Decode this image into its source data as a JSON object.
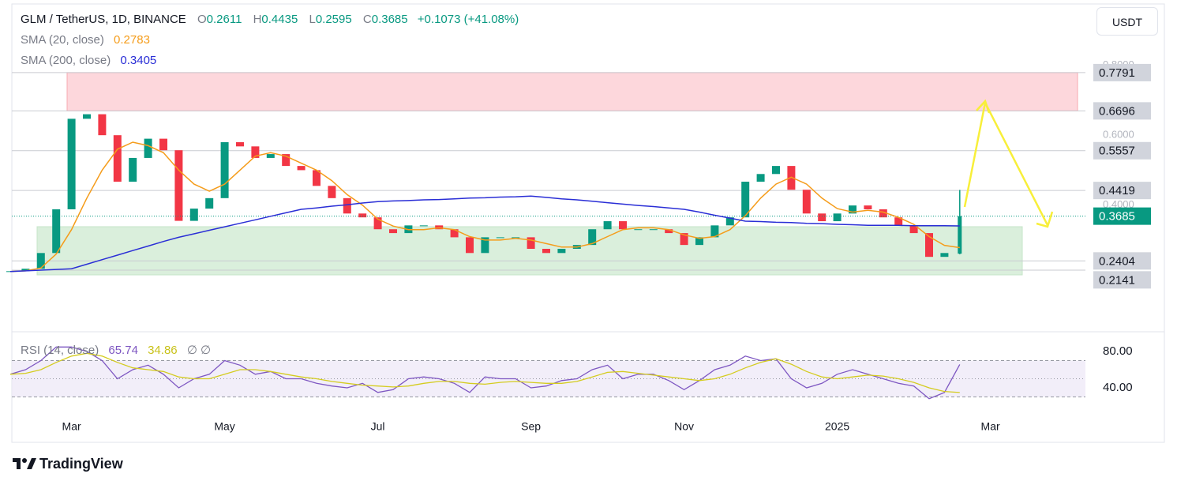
{
  "chart_data": {
    "type": "candlestick",
    "title": "GLM / TetherUS, 1D, BINANCE",
    "ohlc_labels": [
      "O",
      "H",
      "L",
      "C"
    ],
    "ohlc": [
      0.2611,
      0.4435,
      0.2595,
      0.3685
    ],
    "change": "+0.1073 (+41.08%)",
    "currency": "USDT",
    "brand": "TradingView",
    "up_color": "#089981",
    "down_color": "#f23645",
    "categories": [
      null,
      null,
      null,
      null,
      "Mar",
      null,
      null,
      null,
      null,
      null,
      null,
      null,
      null,
      null,
      "May",
      null,
      null,
      null,
      null,
      null,
      null,
      null,
      null,
      null,
      "Jul",
      null,
      null,
      null,
      null,
      null,
      null,
      null,
      null,
      null,
      "Sep",
      null,
      null,
      null,
      null,
      null,
      null,
      null,
      null,
      null,
      "Nov",
      null,
      null,
      null,
      null,
      null,
      null,
      null,
      null,
      null,
      "2025",
      null,
      null,
      null,
      null,
      null,
      null,
      null,
      null,
      null,
      "Mar",
      null,
      null,
      null,
      null,
      null
    ],
    "close": [
      0.211,
      0.218,
      0.263,
      0.388,
      0.647,
      0.66,
      0.6,
      0.467,
      0.535,
      0.59,
      0.557,
      0.355,
      0.39,
      0.42,
      0.58,
      0.568,
      0.535,
      0.546,
      0.512,
      0.5,
      0.455,
      0.42,
      0.376,
      0.365,
      0.331,
      0.32,
      0.342,
      0.342,
      0.331,
      0.308,
      0.263,
      0.308,
      0.308,
      0.308,
      0.275,
      0.263,
      0.275,
      0.286,
      0.331,
      0.354,
      0.331,
      0.331,
      0.331,
      0.32,
      0.286,
      0.308,
      0.342,
      0.365,
      0.467,
      0.489,
      0.512,
      0.444,
      0.376,
      0.354,
      0.376,
      0.399,
      0.388,
      0.365,
      0.342,
      0.32,
      0.252,
      0.263,
      0.3685,
      null,
      null,
      null,
      null,
      null,
      null,
      null
    ],
    "series": [
      {
        "name": "SMA (20, close)",
        "color": "#f59c1a",
        "values": [
          0.21,
          0.212,
          0.22,
          0.26,
          0.33,
          0.42,
          0.5,
          0.56,
          0.58,
          0.57,
          0.55,
          0.5,
          0.46,
          0.44,
          0.46,
          0.5,
          0.54,
          0.55,
          0.54,
          0.52,
          0.5,
          0.47,
          0.43,
          0.4,
          0.36,
          0.34,
          0.33,
          0.33,
          0.335,
          0.33,
          0.31,
          0.3,
          0.3,
          0.305,
          0.3,
          0.29,
          0.28,
          0.28,
          0.29,
          0.31,
          0.33,
          0.335,
          0.335,
          0.33,
          0.315,
          0.305,
          0.31,
          0.33,
          0.37,
          0.42,
          0.46,
          0.48,
          0.46,
          0.42,
          0.39,
          0.38,
          0.385,
          0.38,
          0.365,
          0.345,
          0.31,
          0.285,
          0.2783,
          null,
          null,
          null,
          null,
          null,
          null,
          null
        ]
      },
      {
        "name": "SMA (200, close)",
        "color": "#2a2ed6",
        "values": [
          0.21,
          0.212,
          0.214,
          0.216,
          0.218,
          0.231,
          0.244,
          0.257,
          0.27,
          0.283,
          0.296,
          0.308,
          0.318,
          0.328,
          0.338,
          0.348,
          0.358,
          0.368,
          0.378,
          0.388,
          0.392,
          0.397,
          0.401,
          0.406,
          0.41,
          0.412,
          0.413,
          0.415,
          0.416,
          0.418,
          0.42,
          0.421,
          0.423,
          0.424,
          0.426,
          0.422,
          0.418,
          0.415,
          0.411,
          0.407,
          0.403,
          0.399,
          0.396,
          0.392,
          0.388,
          0.38,
          0.371,
          0.363,
          0.354,
          0.353,
          0.351,
          0.35,
          0.348,
          0.347,
          0.345,
          0.344,
          0.342,
          0.342,
          0.342,
          0.341,
          0.341,
          0.341,
          0.3405,
          null,
          null,
          null,
          null,
          null,
          null,
          null
        ]
      }
    ],
    "ylim": [
      0.04,
      0.98
    ],
    "yticks": [
      {
        "value": 0.8,
        "label": "0.8000"
      },
      {
        "value": 0.6,
        "label": "0.6000"
      },
      {
        "value": 0.4,
        "label": "0.4000"
      }
    ],
    "levels": [
      0.7791,
      0.6696,
      0.5557,
      0.4419,
      0.2404,
      0.2141
    ],
    "rsi": {
      "title": "RSI (14, close)",
      "extra": "∅ ∅",
      "ylim": [
        0,
        100
      ],
      "yticks": [
        {
          "value": 80,
          "label": "80.00"
        },
        {
          "value": 40,
          "label": "40.00"
        }
      ],
      "bands": [
        70,
        50,
        30
      ],
      "series": [
        {
          "color": "#7e57c2",
          "values": [
            55,
            60,
            70,
            85,
            85,
            80,
            70,
            50,
            60,
            65,
            55,
            40,
            50,
            55,
            70,
            65,
            55,
            58,
            50,
            50,
            45,
            42,
            40,
            45,
            35,
            38,
            50,
            52,
            50,
            45,
            35,
            52,
            50,
            50,
            40,
            42,
            48,
            50,
            60,
            65,
            50,
            55,
            55,
            48,
            38,
            48,
            60,
            65,
            75,
            70,
            72,
            50,
            40,
            45,
            55,
            60,
            55,
            50,
            45,
            42,
            28,
            35,
            65.74,
            null,
            null,
            null,
            null,
            null,
            null,
            null
          ]
        },
        {
          "color": "#d4cc1f",
          "values": [
            55,
            56,
            60,
            68,
            75,
            78,
            75,
            68,
            62,
            60,
            58,
            52,
            50,
            50,
            55,
            60,
            60,
            58,
            55,
            52,
            50,
            47,
            45,
            43,
            42,
            41,
            42,
            45,
            47,
            47,
            45,
            44,
            46,
            47,
            46,
            45,
            45,
            47,
            52,
            57,
            58,
            56,
            54,
            52,
            50,
            48,
            50,
            55,
            62,
            68,
            72,
            66,
            58,
            52,
            50,
            52,
            54,
            53,
            50,
            46,
            40,
            36,
            34.86,
            null,
            null,
            null,
            null,
            null,
            null,
            null
          ]
        }
      ]
    }
  }
}
